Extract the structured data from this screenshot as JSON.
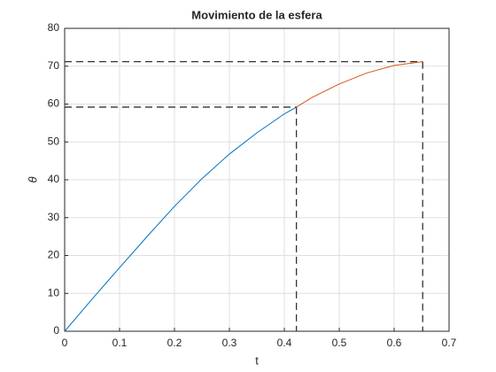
{
  "chart_data": {
    "type": "line",
    "title": "Movimiento de la esfera",
    "x_label": "t",
    "y_label": "θ",
    "series": [
      {
        "color": "#0072bd",
        "x": [
          0,
          0.05,
          0.1,
          0.15,
          0.2,
          0.25,
          0.3,
          0.35,
          0.4,
          0.422
        ],
        "values": [
          0,
          8.5,
          16.8,
          25,
          33,
          40.3,
          46.8,
          52.4,
          57.4,
          59.2
        ]
      },
      {
        "color": "#d95319",
        "x": [
          0.422,
          0.45,
          0.5,
          0.55,
          0.6,
          0.652
        ],
        "values": [
          59.2,
          61.7,
          65.3,
          68.2,
          70.2,
          71.2
        ]
      }
    ],
    "reference_points": [
      {
        "x": 0.422,
        "y": 59.2
      },
      {
        "x": 0.652,
        "y": 71.2
      }
    ],
    "xlim": [
      0,
      0.7
    ],
    "xticks": [
      0,
      0.1,
      0.2,
      0.3,
      0.4,
      0.5,
      0.6,
      0.7
    ],
    "ylim": [
      0,
      80
    ],
    "yticks": [
      0,
      10,
      20,
      30,
      40,
      50,
      60,
      70,
      80
    ],
    "grid": true
  }
}
